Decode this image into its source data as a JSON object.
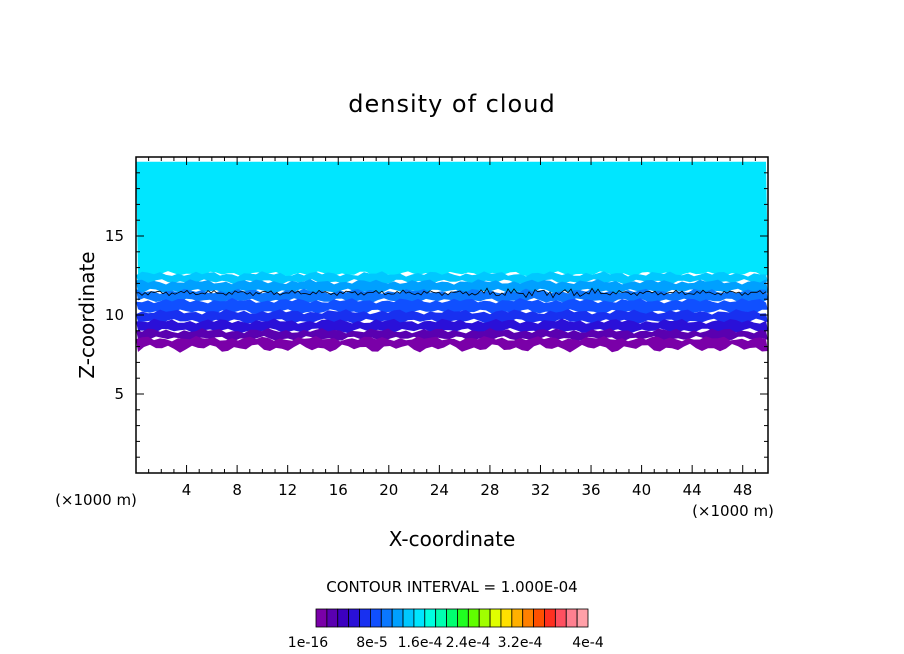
{
  "chart_data": {
    "type": "heatmap",
    "title": "density of cloud",
    "xlabel": "X-coordinate",
    "ylabel": "Z-coordinate",
    "x_unit": "(×1000 m)",
    "z_unit": "(×1000 m)",
    "xlim": [
      0,
      50
    ],
    "ylim": [
      0,
      20
    ],
    "x_ticks": [
      4,
      8,
      12,
      16,
      20,
      24,
      28,
      32,
      36,
      40,
      44,
      48
    ],
    "y_ticks": [
      5,
      10,
      15
    ],
    "contour_interval_text": "CONTOUR INTERVAL = 1.000E-04",
    "colorbar": {
      "colors": [
        "#7a00a8",
        "#5a00b0",
        "#3c00c0",
        "#2a10d8",
        "#1830f0",
        "#1050ff",
        "#0a78ff",
        "#00a0ff",
        "#00c8ff",
        "#00e6ff",
        "#00ffe0",
        "#00ffb0",
        "#00ff70",
        "#20ff20",
        "#60ff00",
        "#a0ff00",
        "#e0ff00",
        "#ffe000",
        "#ffb000",
        "#ff8000",
        "#ff5000",
        "#ff3020",
        "#ff5060",
        "#ff8090",
        "#ffa0a8"
      ],
      "tick_labels": [
        "1e-16",
        "8e-5",
        "1.6e-4",
        "2.4e-4",
        "3.2e-4",
        "4e-4"
      ]
    },
    "layers": [
      {
        "z_bottom": 12.6,
        "z_top": 19.7,
        "color": "#00e6ff"
      },
      {
        "z_bottom": 12.1,
        "z_top": 12.6,
        "color": "#00c8ff"
      },
      {
        "z_bottom": 11.5,
        "z_top": 12.1,
        "color": "#00a0ff"
      },
      {
        "z_bottom": 10.9,
        "z_top": 11.5,
        "color": "#0a78ff"
      },
      {
        "z_bottom": 10.2,
        "z_top": 10.9,
        "color": "#1050ff"
      },
      {
        "z_bottom": 9.6,
        "z_top": 10.2,
        "color": "#1830f0"
      },
      {
        "z_bottom": 9.0,
        "z_top": 9.6,
        "color": "#2a10d8"
      },
      {
        "z_bottom": 8.5,
        "z_top": 9.0,
        "color": "#5a00b0"
      },
      {
        "z_bottom": 7.9,
        "z_top": 8.5,
        "color": "#7a00a8"
      }
    ],
    "contour_level_z": 11.4
  }
}
